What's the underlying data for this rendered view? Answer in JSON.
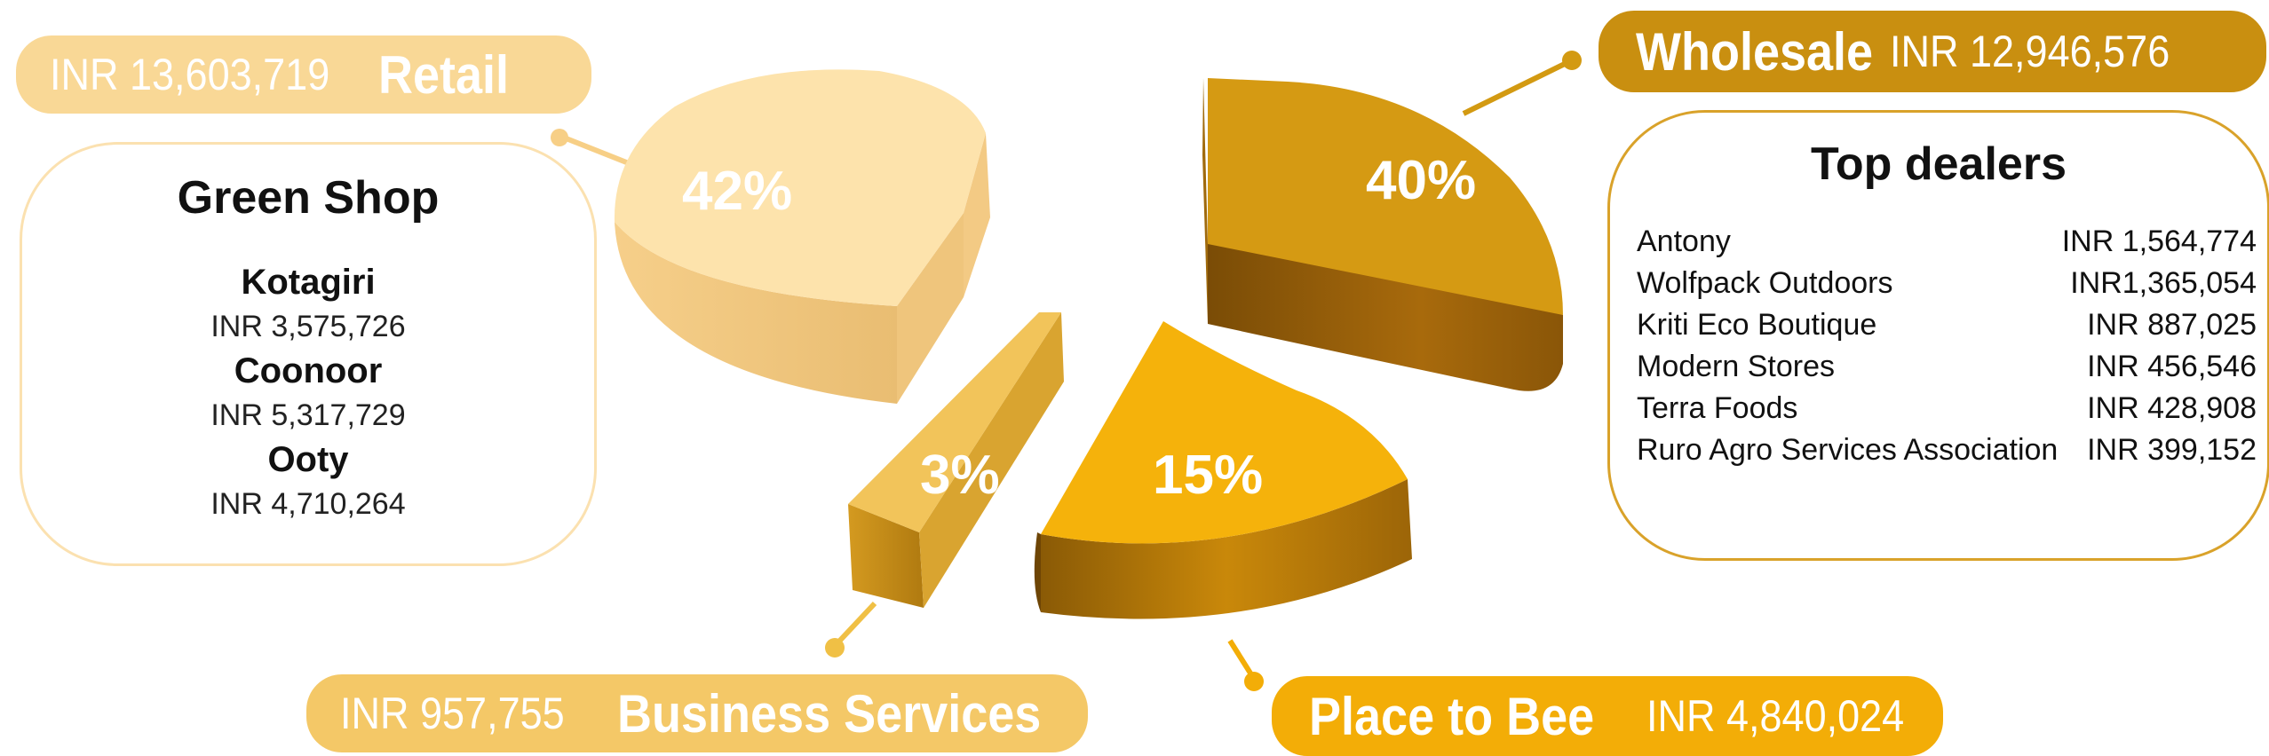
{
  "colors": {
    "retail": "#fbdca0",
    "retail_label": "#f9d896",
    "wholesale": "#d49a12",
    "wholesale_label": "#c98f10",
    "place_to_bee": "#f5b20b",
    "place_to_bee_label": "#f3ad07",
    "business": "#f0c045",
    "business_label": "#f4c867"
  },
  "chart_data": {
    "type": "pie",
    "slices": [
      {
        "id": "retail",
        "label": "Retail",
        "amount": "INR 13,603,719",
        "percent_label": "42%",
        "value": 13603719
      },
      {
        "id": "wholesale",
        "label": "Wholesale",
        "amount": "INR 12,946,576",
        "percent_label": "40%",
        "value": 12946576
      },
      {
        "id": "place_to_bee",
        "label": "Place to Bee",
        "amount": "INR 4,840,024",
        "percent_label": "15%",
        "value": 4840024
      },
      {
        "id": "business",
        "label": "Business Services",
        "amount": "INR 957,755",
        "percent_label": "3%",
        "value": 957755
      }
    ],
    "green_shop": {
      "title": "Green Shop",
      "locations": [
        {
          "name": "Kotagiri",
          "value": "INR 3,575,726"
        },
        {
          "name": "Coonoor",
          "value": "INR 5,317,729"
        },
        {
          "name": "Ooty",
          "value": "INR 4,710,264"
        }
      ]
    },
    "top_dealers": {
      "title": "Top dealers",
      "rows": [
        {
          "name": "Antony",
          "value": "INR 1,564,774"
        },
        {
          "name": "Wolfpack Outdoors",
          "value": "INR1,365,054"
        },
        {
          "name": "Kriti Eco Boutique",
          "value": "INR 887,025"
        },
        {
          "name": "Modern Stores",
          "value": "INR 456,546"
        },
        {
          "name": "Terra Foods",
          "value": "INR 428,908"
        },
        {
          "name": "Ruro Agro Services Association",
          "value": "INR 399,152"
        }
      ]
    }
  }
}
